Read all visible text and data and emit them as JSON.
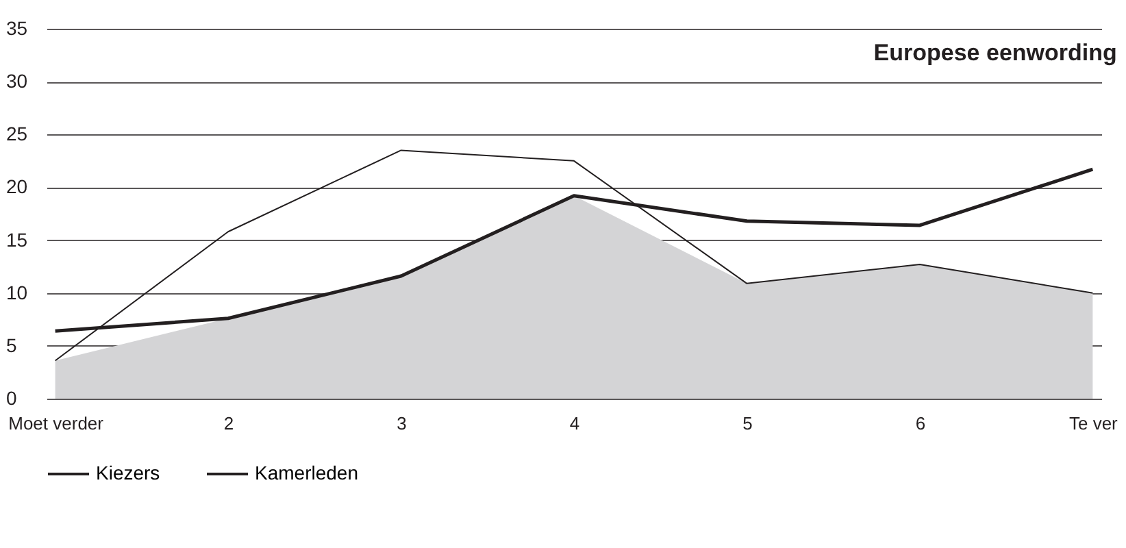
{
  "chart_data": {
    "type": "line",
    "title": "Europese eenwording",
    "categories": [
      "Moet verder",
      "2",
      "3",
      "4",
      "5",
      "6",
      "Te ver"
    ],
    "series": [
      {
        "type": "area",
        "color": "#d4d4d6",
        "values": [
          3.6,
          7.6,
          11.6,
          19.2,
          10.9,
          12.7,
          10.0
        ]
      },
      {
        "name": "Kiezers",
        "color": "#231f20",
        "values": [
          6.4,
          7.6,
          11.6,
          19.2,
          16.8,
          16.4,
          21.7
        ]
      },
      {
        "name": "Kamerleden",
        "color": "#231f20",
        "values": [
          3.6,
          15.8,
          23.5,
          22.5,
          10.9,
          12.7,
          10.0
        ]
      }
    ],
    "ylim": [
      0,
      35
    ],
    "yticks": [
      0,
      5,
      10,
      15,
      20,
      25,
      30,
      35
    ],
    "grid": "y",
    "legend": "bottom",
    "marker": "none",
    "line_style": "solid"
  }
}
